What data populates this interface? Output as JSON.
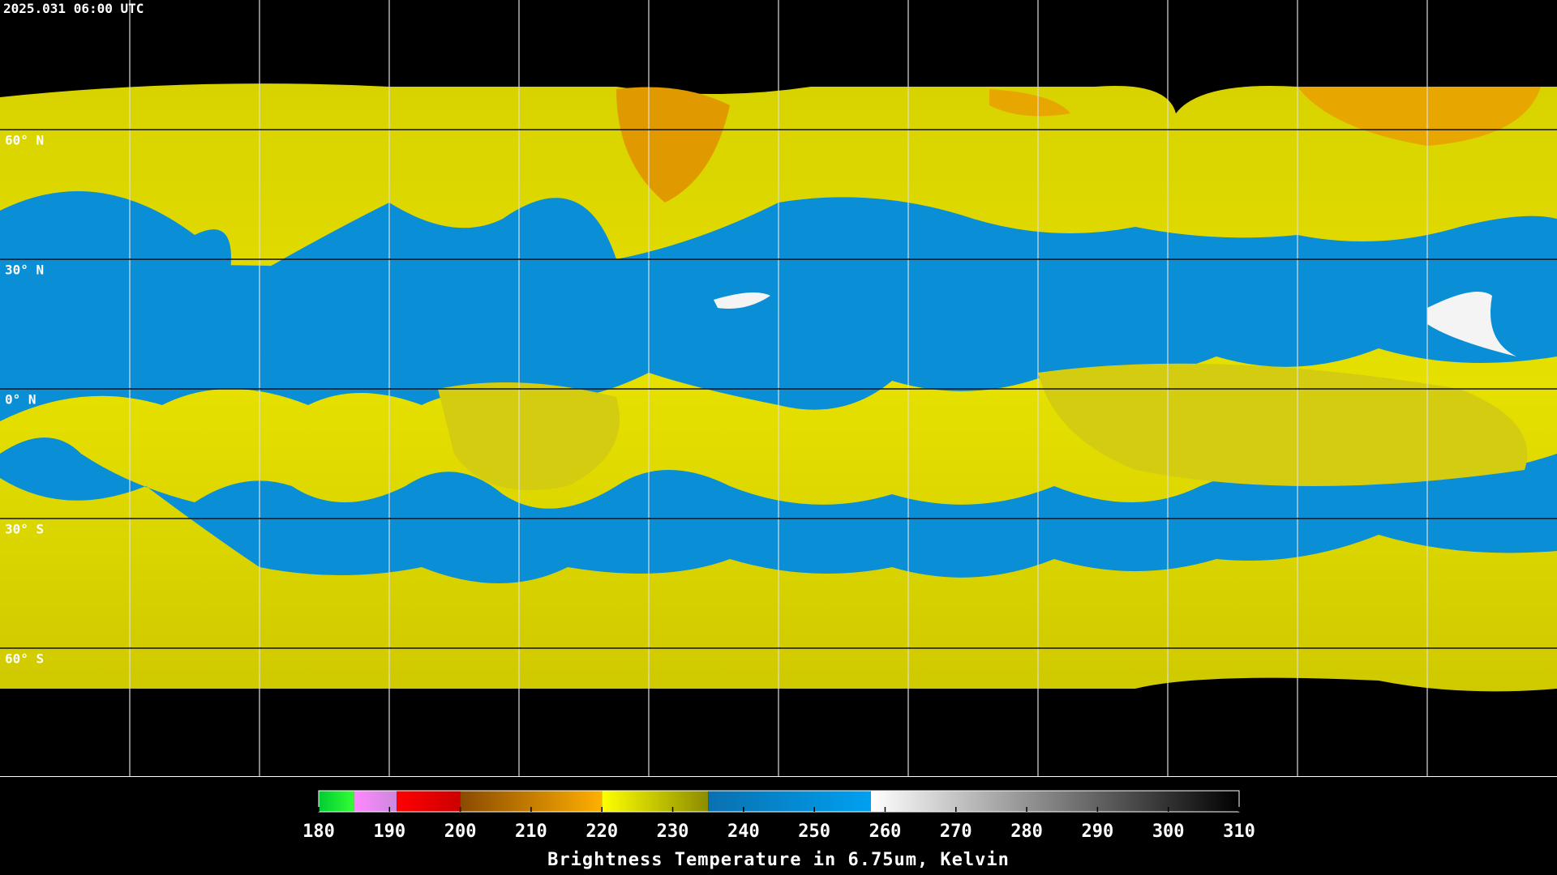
{
  "header": {
    "title": "2025.031 06:00 UTC"
  },
  "grid": {
    "lats": [
      {
        "value": 60,
        "label": "60° N"
      },
      {
        "value": 30,
        "label": "30° N"
      },
      {
        "value": 0,
        "label": "0° N"
      },
      {
        "value": -30,
        "label": "30° S"
      },
      {
        "value": -60,
        "label": "60° S"
      }
    ]
  },
  "colorbar": {
    "title": "Brightness Temperature in 6.75um, Kelvin",
    "range": [
      180,
      310
    ],
    "ticks": [
      180,
      190,
      200,
      210,
      220,
      230,
      240,
      250,
      260,
      270,
      280,
      290,
      300,
      310
    ],
    "segments": [
      {
        "from": 180,
        "to": 185,
        "colors": [
          "#00cc33",
          "#33ff33"
        ]
      },
      {
        "from": 185,
        "to": 191,
        "colors": [
          "#ff88ff",
          "#cc88dd"
        ]
      },
      {
        "from": 191,
        "to": 200,
        "colors": [
          "#ff0000",
          "#cc0000"
        ]
      },
      {
        "from": 200,
        "to": 220,
        "colors": [
          "#8a4a00",
          "#ffb000"
        ]
      },
      {
        "from": 220,
        "to": 235,
        "colors": [
          "#ffff00",
          "#8c8c00"
        ]
      },
      {
        "from": 235,
        "to": 258,
        "colors": [
          "#0a70b0",
          "#00a0f0"
        ]
      },
      {
        "from": 258,
        "to": 310,
        "colors": [
          "#ffffff",
          "#000000"
        ]
      }
    ]
  }
}
